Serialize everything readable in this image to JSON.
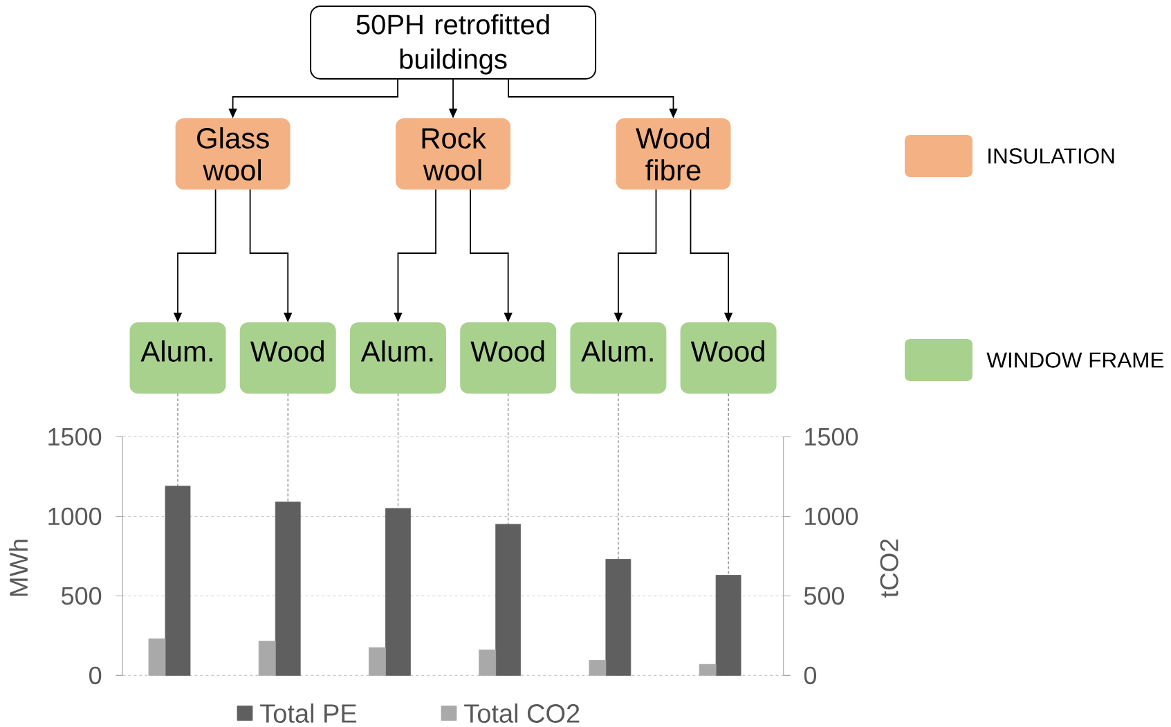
{
  "chart_data": {
    "type": "bar",
    "title": "50PH retrofitted buildings",
    "categories": [
      "Alum.",
      "Wood",
      "Alum.",
      "Wood",
      "Alum.",
      "Wood"
    ],
    "ylabel": "MWh",
    "y2label": "tCO2",
    "series": [
      {
        "name": "Total PE",
        "color": "#5f5f5f",
        "values": [
          1190,
          1090,
          1050,
          950,
          730,
          630
        ]
      },
      {
        "name": "Total CO2",
        "color": "#a9a9a9",
        "values": [
          230,
          215,
          175,
          160,
          95,
          70
        ]
      }
    ],
    "ylim": [
      0,
      1500
    ],
    "yticks": [
      0,
      500,
      1000,
      1500
    ],
    "y2lim": [
      0,
      1500
    ],
    "y2ticks": [
      0,
      500,
      1000,
      1500
    ],
    "grid": true,
    "legend": "bottom",
    "annotations": [
      "Glass wool",
      "Rock wool",
      "Wood fibre",
      "INSULATION",
      "WINDOW FRAME"
    ]
  }
}
